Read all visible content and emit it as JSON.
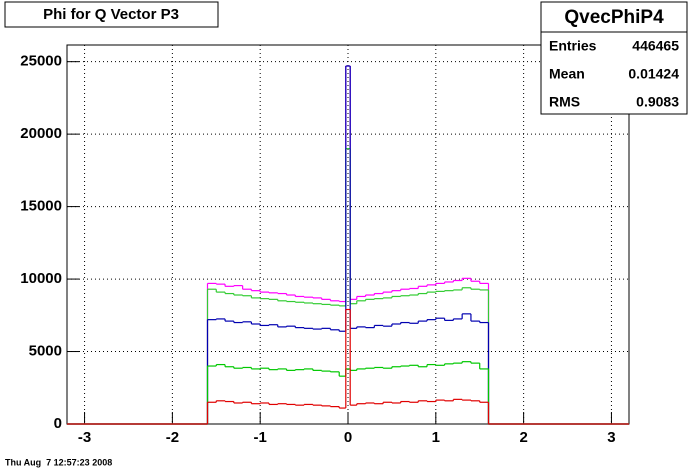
{
  "chart_data": {
    "type": "histogram",
    "title": "Phi for Q Vector P3",
    "footer": "Thu Aug  7 12:57:23 2008",
    "stats": {
      "name": "QvecPhiP4",
      "rows": [
        [
          "Entries",
          "446465"
        ],
        [
          "Mean",
          "0.01424"
        ],
        [
          "RMS",
          "0.9083"
        ]
      ]
    },
    "bins": [
      -3.2,
      -1.6,
      -1.5,
      -1.4,
      -1.3,
      -1.2,
      -1.1,
      -1.0,
      -0.9,
      -0.8,
      -0.7,
      -0.6,
      -0.5,
      -0.4,
      -0.3,
      -0.2,
      -0.1,
      -0.025,
      0.025,
      0.1,
      0.2,
      0.3,
      0.4,
      0.5,
      0.6,
      0.7,
      0.8,
      0.9,
      1.0,
      1.1,
      1.2,
      1.3,
      1.4,
      1.5,
      1.6,
      3.2
    ],
    "series": [
      {
        "color": "#ff00ff",
        "values": [
          0,
          9700,
          9650,
          9500,
          9550,
          9300,
          9200,
          9100,
          9050,
          9000,
          8900,
          8800,
          8750,
          8700,
          8600,
          8500,
          8450,
          24700,
          8600,
          8800,
          8900,
          9000,
          9100,
          9200,
          9300,
          9350,
          9500,
          9600,
          9700,
          9800,
          9900,
          10050,
          9850,
          9700,
          0
        ]
      },
      {
        "color": "#33cc33",
        "values": [
          0,
          9300,
          9100,
          9000,
          8900,
          8850,
          8700,
          8650,
          8600,
          8500,
          8450,
          8400,
          8350,
          8300,
          8250,
          8200,
          8150,
          19000,
          8300,
          8500,
          8600,
          8650,
          8700,
          8800,
          8850,
          8900,
          9000,
          9100,
          9150,
          9200,
          9250,
          9400,
          9300,
          9250,
          0
        ]
      },
      {
        "color": "#0000b0",
        "values": [
          0,
          7200,
          7250,
          7100,
          7000,
          7050,
          6900,
          6800,
          6850,
          6700,
          6750,
          6650,
          6600,
          6550,
          6600,
          6500,
          6400,
          24700,
          6600,
          6700,
          6650,
          6800,
          6750,
          6900,
          7000,
          6950,
          7100,
          7200,
          7300,
          7150,
          7250,
          7600,
          7100,
          7000,
          0
        ]
      },
      {
        "color": "#00c800",
        "values": [
          0,
          4000,
          4100,
          3950,
          3850,
          3900,
          3800,
          3850,
          3750,
          3800,
          3700,
          3750,
          3800,
          3700,
          3650,
          3600,
          3300,
          3800,
          3700,
          3800,
          3850,
          3900,
          3850,
          3950,
          4000,
          4050,
          3950,
          4100,
          4050,
          4150,
          4200,
          4300,
          4200,
          3800,
          0
        ]
      },
      {
        "color": "#e00000",
        "values": [
          0,
          1500,
          1600,
          1550,
          1450,
          1500,
          1400,
          1450,
          1350,
          1400,
          1350,
          1300,
          1350,
          1300,
          1250,
          1200,
          1100,
          7900,
          1300,
          1400,
          1450,
          1400,
          1500,
          1450,
          1550,
          1500,
          1600,
          1550,
          1650,
          1600,
          1700,
          1650,
          1600,
          1500,
          0
        ]
      }
    ],
    "xlim": [
      -3.2,
      3.2
    ],
    "ylim": [
      0,
      26150
    ],
    "xticks": [
      -3,
      -2,
      -1,
      0,
      1,
      2,
      3
    ],
    "yticks": [
      0,
      5000,
      10000,
      15000,
      20000,
      25000
    ],
    "grid": true
  }
}
